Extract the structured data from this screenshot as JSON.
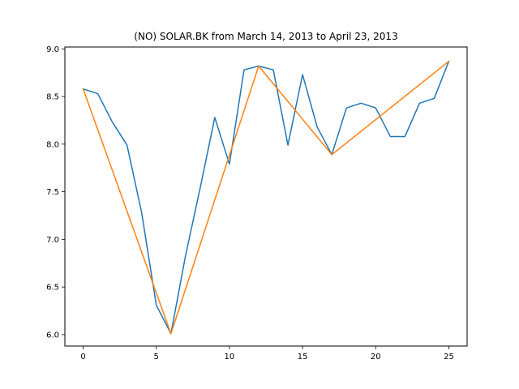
{
  "chart_data": {
    "type": "line",
    "title": "(NO) SOLAR.BK from March 14, 2013 to April 23, 2013",
    "xlabel": "",
    "ylabel": "",
    "xlim": [
      -1.25,
      26.25
    ],
    "ylim": [
      5.88,
      9.02
    ],
    "xticks": [
      0,
      5,
      10,
      15,
      20,
      25
    ],
    "yticks": [
      6.0,
      6.5,
      7.0,
      7.5,
      8.0,
      8.5,
      9.0
    ],
    "ytick_labels": [
      "6.0",
      "6.5",
      "7.0",
      "7.5",
      "8.0",
      "8.5",
      "9.0"
    ],
    "grid": false,
    "series": [
      {
        "color": "#1f77b4",
        "x": [
          0,
          1,
          2,
          3,
          4,
          5,
          6,
          7,
          8,
          9,
          10,
          11,
          12,
          13,
          14,
          15,
          16,
          17,
          18,
          19,
          20,
          21,
          22,
          23,
          24,
          25
        ],
        "y": [
          8.58,
          8.53,
          8.23,
          7.99,
          7.28,
          6.31,
          6.01,
          6.83,
          7.54,
          8.28,
          7.79,
          8.78,
          8.82,
          8.78,
          7.99,
          8.73,
          8.18,
          7.89,
          8.38,
          8.43,
          8.38,
          8.08,
          8.08,
          8.43,
          8.48,
          8.87
        ]
      },
      {
        "color": "#ff7f0e",
        "x": [
          0,
          6,
          12,
          17,
          25
        ],
        "y": [
          8.58,
          6.01,
          8.82,
          7.89,
          8.87
        ]
      }
    ]
  }
}
